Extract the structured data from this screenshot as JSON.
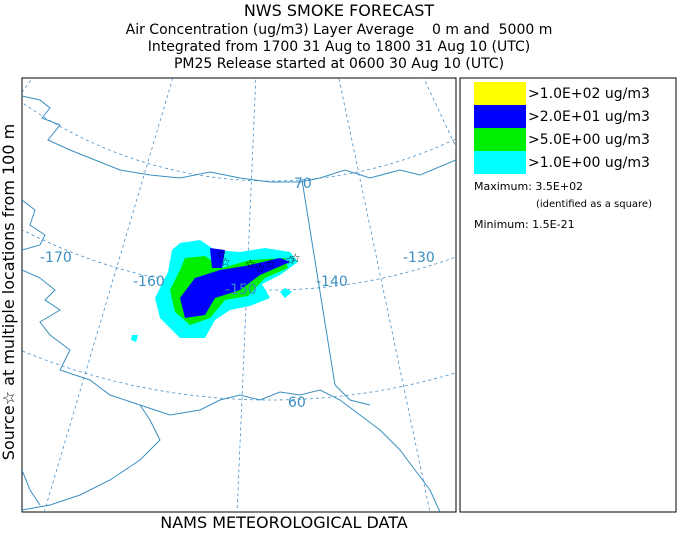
{
  "header": {
    "title": "NWS SMOKE FORECAST",
    "lines": [
      "Air Concentration (ug/m3) Layer Average    0 m and  5000 m",
      "Integrated from 1700 31 Aug to 1800 31 Aug 10 (UTC)",
      "PM25 Release started at 0600 30 Aug 10 (UTC)"
    ]
  },
  "side_label": "Source☆ at multiple locations from 100 m",
  "footer": "NAMS METEOROLOGICAL DATA",
  "legend": {
    "entries": [
      {
        "label": ">1.0E+02 ug/m3",
        "color": "#ffff00"
      },
      {
        "label": ">2.0E+01 ug/m3",
        "color": "#0000ff"
      },
      {
        "label": ">5.0E+00 ug/m3",
        "color": "#00ee00"
      },
      {
        "label": ">1.0E+00 ug/m3",
        "color": "#00ffff"
      }
    ],
    "maximum": "Maximum: 3.5E+02",
    "maximum_note": "(identified as a square)",
    "minimum": "Minimum: 1.5E-21"
  },
  "map": {
    "labels": [
      "-170",
      "-160",
      "-150",
      "-140",
      "-130",
      "70",
      "60"
    ]
  }
}
